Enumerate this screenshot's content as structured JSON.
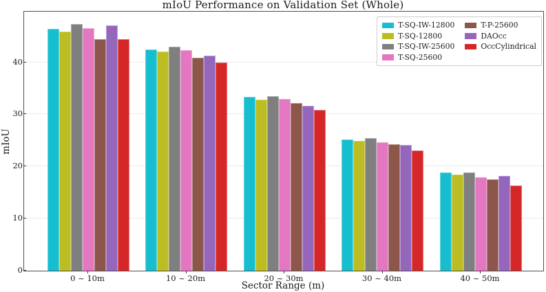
{
  "chart_data": {
    "type": "bar",
    "title": "mIoU Performance on Validation Set (Whole)",
    "xlabel": "Sector Range (m)",
    "ylabel": "mIoU",
    "categories": [
      "0 ~ 10m",
      "10 ~ 20m",
      "20 ~ 30m",
      "30 ~ 40m",
      "40 ~ 50m"
    ],
    "series": [
      {
        "name": "T-SQ-IW-12800",
        "color": "#17becf",
        "values": [
          46.4,
          42.4,
          33.3,
          25.2,
          18.9
        ]
      },
      {
        "name": "T-SQ-12800",
        "color": "#bcbd22",
        "values": [
          45.9,
          42.0,
          32.8,
          24.9,
          18.5
        ]
      },
      {
        "name": "T-SQ-IW-25600",
        "color": "#7f7f7f",
        "values": [
          47.3,
          43.0,
          33.5,
          25.5,
          18.9
        ]
      },
      {
        "name": "T-SQ-25600",
        "color": "#e377c2",
        "values": [
          46.5,
          42.3,
          32.9,
          24.7,
          17.9
        ]
      },
      {
        "name": "T-P-25600",
        "color": "#8c564b",
        "values": [
          44.4,
          40.9,
          32.2,
          24.2,
          17.5
        ]
      },
      {
        "name": "DAOcc",
        "color": "#9467bd",
        "values": [
          47.1,
          41.3,
          31.6,
          24.1,
          18.2
        ]
      },
      {
        "name": "OccCylindrical",
        "color": "#d62728",
        "values": [
          44.4,
          39.9,
          30.9,
          23.1,
          16.4
        ]
      }
    ],
    "y_ticks": [
      0,
      10,
      20,
      30,
      40
    ],
    "ylim": [
      0,
      49.7
    ],
    "grid": "horizontal dotted",
    "legend_position": "upper right, 2 columns",
    "colors": {
      "spine": "#4d4d4d",
      "gridline": "#d4d4d4",
      "text": "#1a1a1a",
      "background": "#ffffff"
    }
  }
}
